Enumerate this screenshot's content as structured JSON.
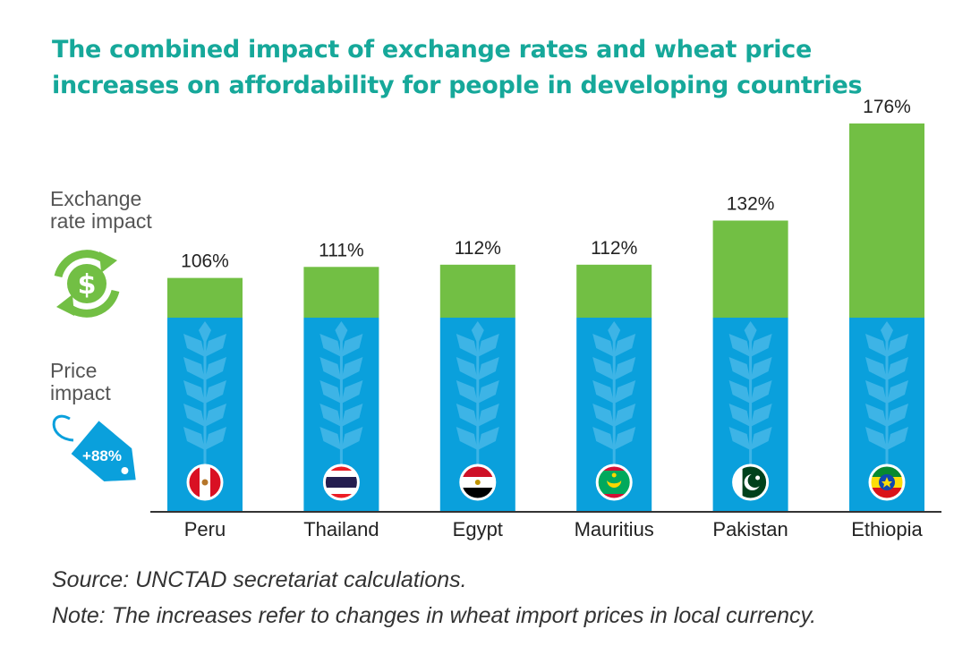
{
  "title_lines": [
    "The combined impact of exchange rates and wheat price",
    "increases on affordability for people in developing countries"
  ],
  "legend": {
    "exchange": {
      "line1": "Exchange",
      "line2": "rate impact",
      "icon": "dollar-cycle-icon"
    },
    "price": {
      "line1": "Price",
      "line2": "impact",
      "tag_text": "+88%",
      "icon": "price-tag-icon"
    }
  },
  "colors": {
    "title": "#16a89a",
    "price_bar": "#0aa0dc",
    "exchange_bar": "#72bf44",
    "tag": "#0aa0dc"
  },
  "chart_data": {
    "type": "bar",
    "stacked": true,
    "categories": [
      "Peru",
      "Thailand",
      "Egypt",
      "Mauritius",
      "Pakistan",
      "Ethiopia"
    ],
    "series": [
      {
        "name": "Price impact",
        "values": [
          88,
          88,
          88,
          88,
          88,
          88
        ],
        "color": "#0aa0dc"
      },
      {
        "name": "Exchange rate impact",
        "values": [
          18,
          23,
          24,
          24,
          44,
          88
        ],
        "color": "#72bf44"
      }
    ],
    "totals": [
      106,
      111,
      112,
      112,
      132,
      176
    ],
    "total_labels": [
      "106%",
      "111%",
      "112%",
      "112%",
      "132%",
      "176%"
    ],
    "flags": [
      "peru-flag-icon",
      "thailand-flag-icon",
      "egypt-flag-icon",
      "mauritius-flag-icon",
      "pakistan-flag-icon",
      "ethiopia-flag-icon"
    ],
    "ylim": [
      0,
      176
    ],
    "grid": false
  },
  "notes": {
    "source": "Source: UNCTAD secretariat calculations.",
    "note": "Note: The increases refer to changes in wheat import prices in local currency."
  }
}
